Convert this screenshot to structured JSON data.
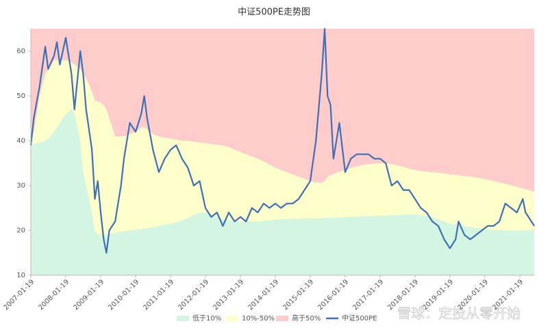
{
  "chart_data": {
    "type": "band-line",
    "title": "中证500PE走势图",
    "x": [
      "2007-01-19",
      "2007-02-19",
      "2007-04-19",
      "2007-06-19",
      "2007-07-19",
      "2007-09-19",
      "2007-10-19",
      "2007-11-19",
      "2008-01-19",
      "2008-03-19",
      "2008-04-19",
      "2008-06-19",
      "2008-07-19",
      "2008-08-19",
      "2008-10-19",
      "2008-11-19",
      "2008-12-19",
      "2009-01-19",
      "2009-02-19",
      "2009-03-19",
      "2009-04-19",
      "2009-06-19",
      "2009-08-19",
      "2009-09-19",
      "2009-11-19",
      "2010-01-19",
      "2010-03-19",
      "2010-04-19",
      "2010-05-19",
      "2010-07-19",
      "2010-09-19",
      "2010-11-19",
      "2011-01-19",
      "2011-03-19",
      "2011-05-19",
      "2011-07-19",
      "2011-09-19",
      "2011-11-19",
      "2012-01-19",
      "2012-03-19",
      "2012-05-19",
      "2012-07-19",
      "2012-09-19",
      "2012-11-19",
      "2013-01-19",
      "2013-03-19",
      "2013-05-19",
      "2013-07-19",
      "2013-09-19",
      "2013-11-19",
      "2014-01-19",
      "2014-03-19",
      "2014-05-19",
      "2014-07-19",
      "2014-09-19",
      "2014-11-19",
      "2015-01-19",
      "2015-03-19",
      "2015-05-19",
      "2015-06-19",
      "2015-07-19",
      "2015-08-19",
      "2015-09-19",
      "2015-11-19",
      "2016-01-19",
      "2016-03-19",
      "2016-05-19",
      "2016-07-19",
      "2016-09-19",
      "2016-11-19",
      "2017-01-19",
      "2017-03-19",
      "2017-05-19",
      "2017-07-19",
      "2017-09-19",
      "2017-11-19",
      "2018-01-19",
      "2018-03-19",
      "2018-05-19",
      "2018-07-19",
      "2018-09-19",
      "2018-11-19",
      "2019-01-19",
      "2019-03-19",
      "2019-04-19",
      "2019-06-19",
      "2019-08-19",
      "2019-10-19",
      "2019-12-19",
      "2020-02-19",
      "2020-04-19",
      "2020-06-19",
      "2020-08-19",
      "2020-10-19",
      "2020-12-19",
      "2021-02-19",
      "2021-03-19",
      "2021-04-19",
      "2021-05-19",
      "2021-06-19"
    ],
    "series": [
      {
        "name": "低于10%",
        "color": "#d4f5e2",
        "values": [
          39,
          39.3,
          39.6,
          40,
          40.5,
          42,
          43,
          44,
          46,
          47,
          46,
          40,
          33,
          30,
          24,
          20,
          19,
          19,
          19,
          19,
          19.2,
          19.5,
          19.7,
          19.8,
          20,
          20.2,
          20.3,
          20.4,
          20.5,
          20.7,
          21,
          21.3,
          21.5,
          21.8,
          22.2,
          22.8,
          23.5,
          24,
          24,
          23.5,
          23,
          22.5,
          22.3,
          22.1,
          22,
          22,
          22,
          22,
          22.2,
          22.3,
          22.5,
          22.5,
          22.5,
          22.6,
          22.6,
          22.7,
          22.7,
          22.7,
          22.7,
          22.8,
          22.8,
          22.8,
          22.9,
          22.9,
          23,
          23,
          23.1,
          23.1,
          23.2,
          23.2,
          23.3,
          23.3,
          23.4,
          23.4,
          23.5,
          23.5,
          23.5,
          23.4,
          23.3,
          23,
          22.5,
          22,
          21.5,
          21.3,
          21.2,
          21,
          20.8,
          20.5,
          20.3,
          20.2,
          20.1,
          20.1,
          20,
          20,
          20,
          20,
          20,
          20,
          20,
          20
        ]
      },
      {
        "name": "10%-50%",
        "color": "#ffffcc",
        "values": [
          40,
          42,
          50,
          55,
          56,
          58,
          58,
          58,
          58,
          57.5,
          57,
          56,
          55,
          54,
          51,
          49,
          48.8,
          48.5,
          48,
          47,
          45,
          41,
          41,
          41,
          41.5,
          42,
          43,
          43,
          42.5,
          41.5,
          41,
          40.7,
          40.5,
          40.3,
          40,
          40,
          39.8,
          39.6,
          39.5,
          39.3,
          39.1,
          39,
          38.6,
          38,
          37.5,
          37,
          36.5,
          36,
          35.4,
          34.7,
          34,
          33.5,
          33,
          32.5,
          32,
          31.5,
          31,
          30.7,
          30.6,
          31,
          32,
          32.3,
          32.6,
          33.1,
          33.5,
          33.9,
          34.3,
          34.6,
          34.8,
          34.9,
          35,
          35,
          34.8,
          34.5,
          34.2,
          33.8,
          33.5,
          33.3,
          33.1,
          33,
          32.9,
          32.7,
          32.5,
          32.4,
          32.3,
          32.1,
          32,
          31.8,
          31.6,
          31.3,
          31,
          30.7,
          30.4,
          30.1,
          29.7,
          29.4,
          29.2,
          29,
          28.8,
          28.6
        ]
      },
      {
        "name": "高于50%",
        "color": "#ffcccc"
      },
      {
        "name": "中证500PE",
        "color": "#3d6fb6",
        "values": [
          39,
          45,
          52,
          61,
          56,
          59,
          62,
          57,
          63,
          55,
          47,
          60,
          55,
          47,
          38,
          27,
          31,
          24,
          18,
          15,
          20,
          22,
          30,
          36,
          44,
          42,
          46,
          50,
          45,
          38,
          33,
          36,
          38,
          39,
          36,
          34,
          30,
          31,
          25,
          23,
          24,
          21,
          24,
          22,
          23,
          22,
          25,
          24,
          26,
          25,
          26,
          25,
          26,
          26,
          27,
          29,
          31,
          40,
          55,
          65,
          50,
          48,
          36,
          44,
          33,
          36,
          37,
          37,
          37,
          36,
          36,
          35,
          30,
          31,
          29,
          29,
          27,
          25,
          24,
          22,
          21,
          18,
          16,
          18,
          22,
          19,
          18,
          19,
          20,
          21,
          21,
          22,
          26,
          25,
          24,
          27,
          24,
          23,
          22,
          21
        ]
      }
    ],
    "xlim": [
      "2007-01-19",
      "2021-06-19"
    ],
    "xticks": [
      "2007-01-19",
      "2008-01-19",
      "2009-01-19",
      "2010-01-19",
      "2011-01-19",
      "2012-01-19",
      "2013-01-19",
      "2014-01-19",
      "2015-01-19",
      "2016-01-19",
      "2017-01-19",
      "2018-01-19",
      "2019-01-19",
      "2020-01-19",
      "2021-01-19"
    ],
    "ylim": [
      10,
      65
    ],
    "yticks": [
      10,
      20,
      30,
      40,
      50,
      60
    ],
    "legend": "bottom",
    "watermark": "雪球：定投从零开始"
  }
}
